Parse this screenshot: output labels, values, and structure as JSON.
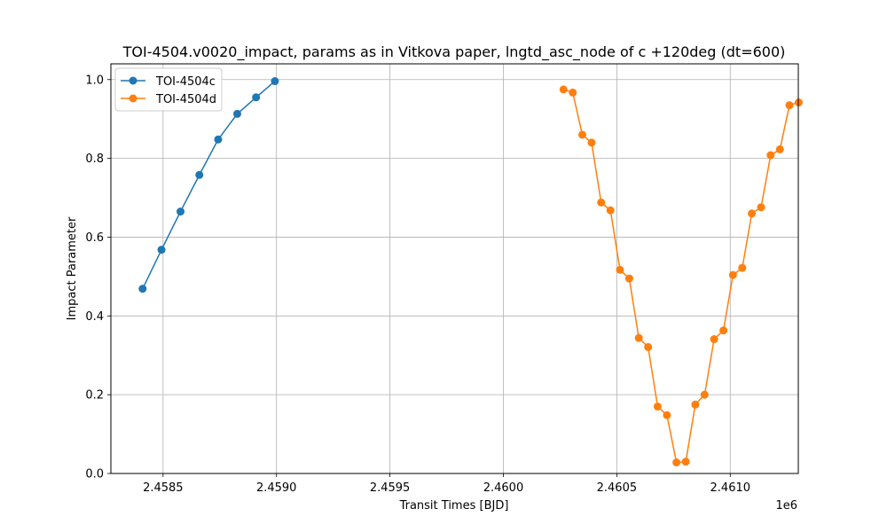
{
  "chart_data": {
    "type": "line",
    "title": "TOI-4504.v0020_impact, params as in Vitkova paper, lngtd_asc_node of c +120deg (dt=600)",
    "xlabel": "Transit Times [BJD]",
    "ylabel": "Impact Parameter",
    "x_offset_label": "1e6",
    "xlim": [
      2458270,
      2461300
    ],
    "ylim": [
      0.0,
      1.04
    ],
    "x_ticks": [
      2458500,
      2459000,
      2459500,
      2460000,
      2460500,
      2461000
    ],
    "x_tick_labels": [
      "2.4585",
      "2.4590",
      "2.4595",
      "2.4600",
      "2.4605",
      "2.4610"
    ],
    "y_ticks": [
      0.0,
      0.2,
      0.4,
      0.6,
      0.8,
      1.0
    ],
    "y_tick_labels": [
      "0.0",
      "0.2",
      "0.4",
      "0.6",
      "0.8",
      "1.0"
    ],
    "grid": true,
    "legend_position": "top-left",
    "series": [
      {
        "name": "TOI-4504c",
        "color": "#1f77b4",
        "x": [
          2458410,
          2458493,
          2458577,
          2458660,
          2458743,
          2458827,
          2458910,
          2458993
        ],
        "y": [
          0.469,
          0.568,
          0.665,
          0.758,
          0.848,
          0.913,
          0.955,
          0.996
        ]
      },
      {
        "name": "TOI-4504d",
        "color": "#ff7f0e",
        "x": [
          2460265,
          2460306,
          2460348,
          2460389,
          2460431,
          2460472,
          2460514,
          2460555,
          2460597,
          2460638,
          2460680,
          2460721,
          2460763,
          2460804,
          2460846,
          2460887,
          2460929,
          2460970,
          2461012,
          2461053,
          2461095,
          2461136,
          2461178,
          2461219,
          2461261,
          2461302
        ],
        "y": [
          0.975,
          0.967,
          0.86,
          0.84,
          0.688,
          0.668,
          0.517,
          0.495,
          0.344,
          0.321,
          0.17,
          0.148,
          0.028,
          0.03,
          0.175,
          0.2,
          0.341,
          0.363,
          0.504,
          0.522,
          0.66,
          0.676,
          0.808,
          0.823,
          0.935,
          0.942
        ]
      }
    ]
  }
}
